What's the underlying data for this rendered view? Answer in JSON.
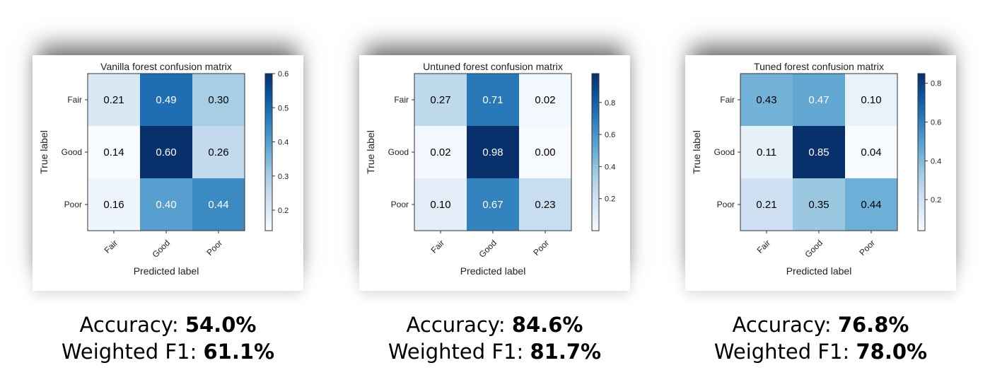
{
  "chart_data": [
    {
      "type": "heatmap",
      "title": "Vanilla forest confusion matrix",
      "xlabel": "Predicted label",
      "ylabel": "True label",
      "x_categories": [
        "Fair",
        "Good",
        "Poor"
      ],
      "y_categories": [
        "Fair",
        "Good",
        "Poor"
      ],
      "values": [
        [
          0.21,
          0.49,
          0.3
        ],
        [
          0.14,
          0.6,
          0.26
        ],
        [
          0.16,
          0.4,
          0.44
        ]
      ],
      "value_labels": [
        [
          "0.21",
          "0.49",
          "0.30"
        ],
        [
          "0.14",
          "0.60",
          "0.26"
        ],
        [
          "0.16",
          "0.40",
          "0.44"
        ]
      ],
      "colorbar": {
        "range": [
          0.14,
          0.6
        ],
        "ticks": [
          0.2,
          0.3,
          0.4,
          0.5,
          0.6
        ],
        "tick_labels": [
          "0.2",
          "0.3",
          "0.4",
          "0.5",
          "0.6"
        ]
      },
      "colormap": "Blues",
      "accuracy_label": "Accuracy:",
      "accuracy": "54.0%",
      "f1_label": "Weighted F1:",
      "f1": "61.1%"
    },
    {
      "type": "heatmap",
      "title": "Untuned forest confusion matrix",
      "xlabel": "Predicted label",
      "ylabel": "True label",
      "x_categories": [
        "Fair",
        "Good",
        "Poor"
      ],
      "y_categories": [
        "Fair",
        "Good",
        "Poor"
      ],
      "values": [
        [
          0.27,
          0.71,
          0.02
        ],
        [
          0.02,
          0.98,
          0.0
        ],
        [
          0.1,
          0.67,
          0.23
        ]
      ],
      "value_labels": [
        [
          "0.27",
          "0.71",
          "0.02"
        ],
        [
          "0.02",
          "0.98",
          "0.00"
        ],
        [
          "0.10",
          "0.67",
          "0.23"
        ]
      ],
      "colorbar": {
        "range": [
          0.0,
          0.98
        ],
        "ticks": [
          0.2,
          0.4,
          0.6,
          0.8
        ],
        "tick_labels": [
          "0.2",
          "0.4",
          "0.6",
          "0.8"
        ]
      },
      "colormap": "Blues",
      "accuracy_label": "Accuracy:",
      "accuracy": "84.6%",
      "f1_label": "Weighted F1:",
      "f1": "81.7%"
    },
    {
      "type": "heatmap",
      "title": "Tuned forest confusion matrix",
      "xlabel": "Predicted label",
      "ylabel": "True label",
      "x_categories": [
        "Fair",
        "Good",
        "Poor"
      ],
      "y_categories": [
        "Fair",
        "Good",
        "Poor"
      ],
      "values": [
        [
          0.43,
          0.47,
          0.1
        ],
        [
          0.11,
          0.85,
          0.04
        ],
        [
          0.21,
          0.35,
          0.44
        ]
      ],
      "value_labels": [
        [
          "0.43",
          "0.47",
          "0.10"
        ],
        [
          "0.11",
          "0.85",
          "0.04"
        ],
        [
          "0.21",
          "0.35",
          "0.44"
        ]
      ],
      "colorbar": {
        "range": [
          0.04,
          0.85
        ],
        "ticks": [
          0.2,
          0.4,
          0.6,
          0.8
        ],
        "tick_labels": [
          "0.2",
          "0.4",
          "0.6",
          "0.8"
        ]
      },
      "colormap": "Blues",
      "accuracy_label": "Accuracy:",
      "accuracy": "76.8%",
      "f1_label": "Weighted F1:",
      "f1": "78.0%"
    }
  ]
}
